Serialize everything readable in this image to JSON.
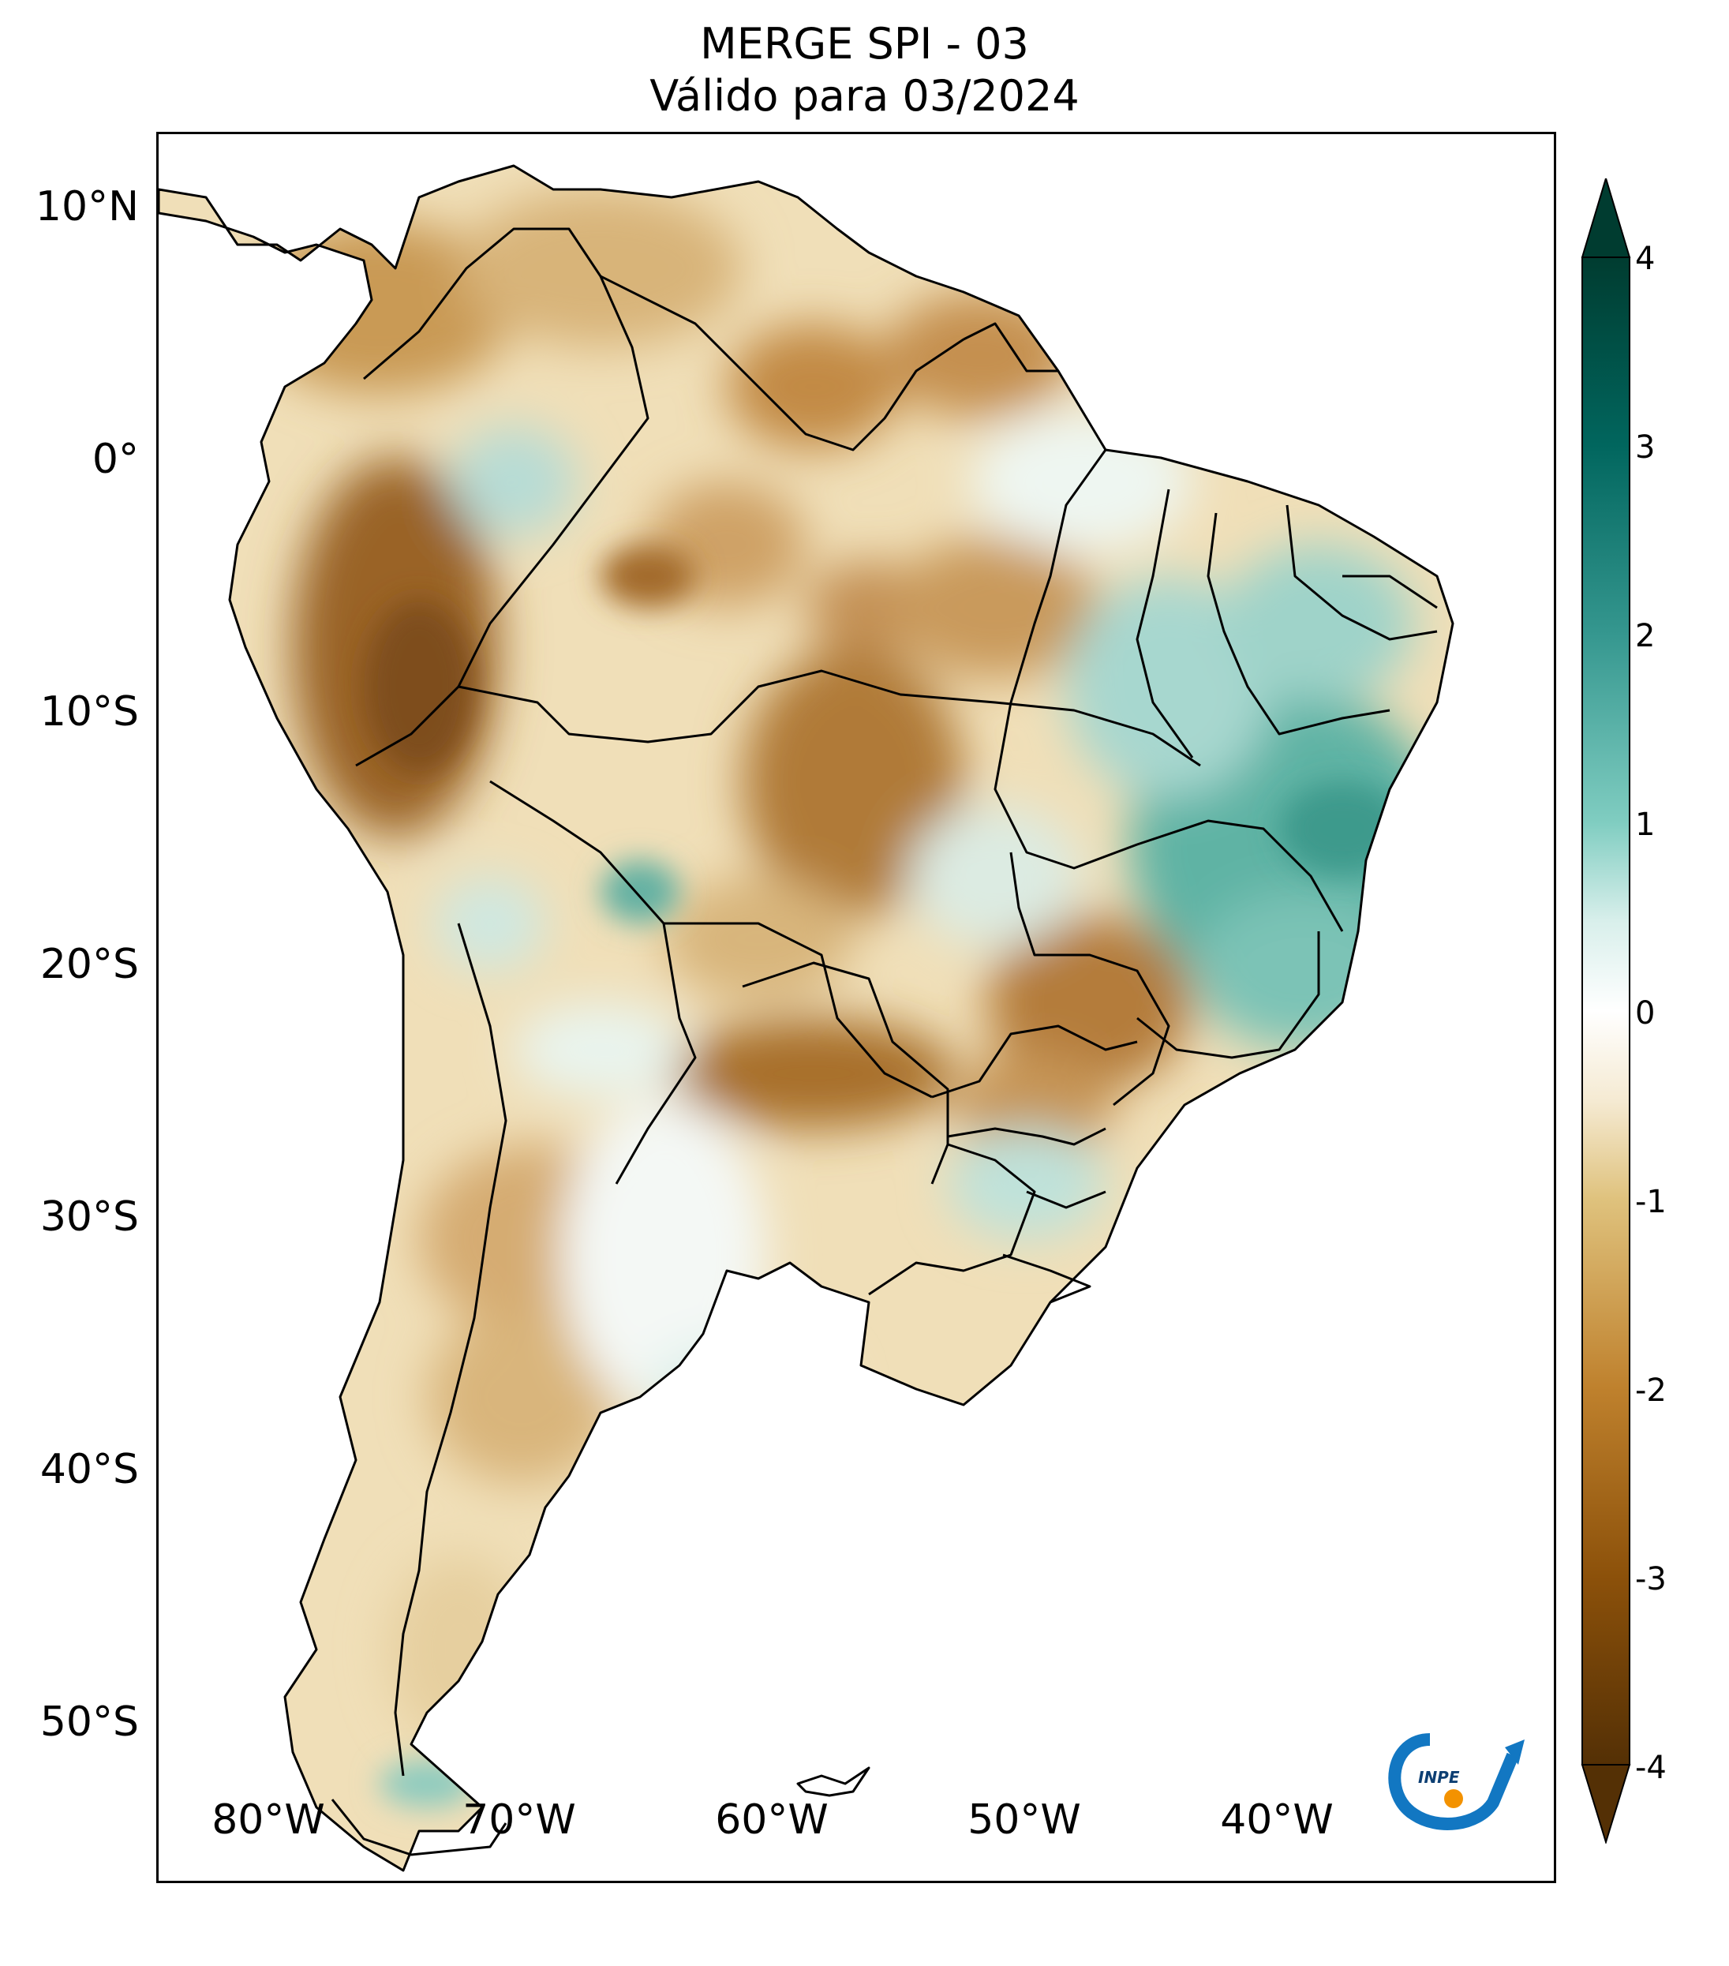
{
  "title": {
    "line1": "MERGE   SPI - 03",
    "line2": "Válido para 03/2024"
  },
  "lat_labels": [
    "10°N",
    "0°",
    "10°S",
    "20°S",
    "30°S",
    "40°S",
    "50°S"
  ],
  "lon_labels": [
    "80°W",
    "70°W",
    "60°W",
    "50°W",
    "40°W"
  ],
  "colorbar": {
    "ticks": [
      "4",
      "3",
      "2",
      "1",
      "0",
      "-1",
      "-2",
      "-3",
      "-4"
    ],
    "min": -4,
    "max": 4,
    "colors": {
      "dry_extreme": "#543005",
      "dry": "#bf812d",
      "neutral": "#ffffff",
      "wet": "#35978f",
      "wet_extreme": "#003c30"
    }
  },
  "logo": {
    "text": "INPE"
  }
}
